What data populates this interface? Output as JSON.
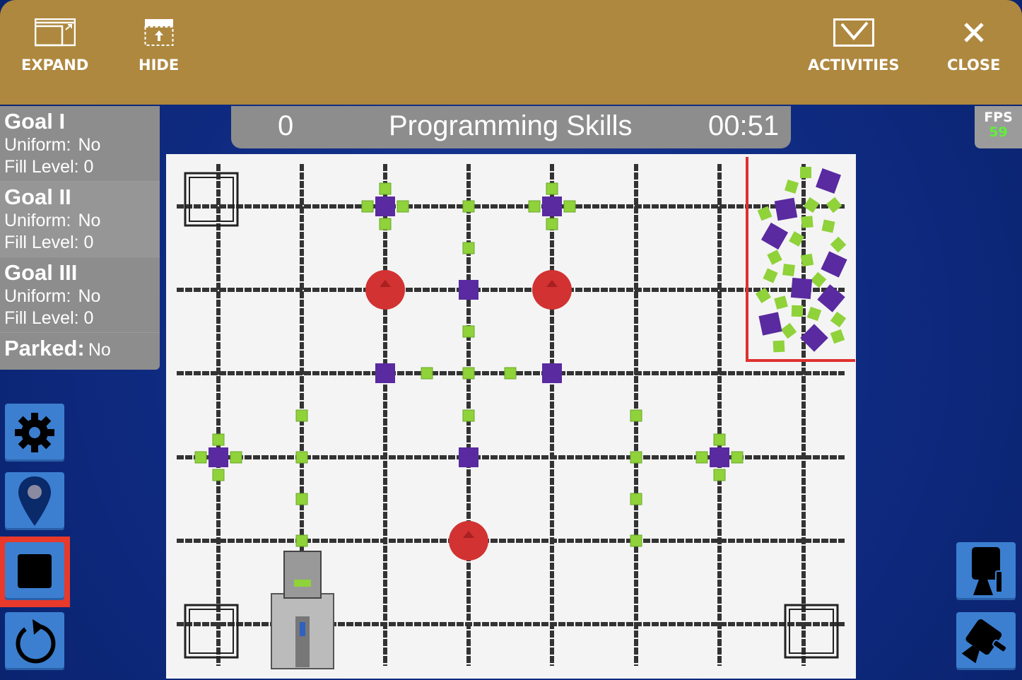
{
  "toolbar": {
    "expand": "EXPAND",
    "hide": "HIDE",
    "activities": "ACTIVITIES",
    "close": "CLOSE"
  },
  "goals": [
    {
      "title": "Goal I",
      "uniform_label": "Uniform:",
      "uniform": "No",
      "fill_label": "Fill Level:",
      "fill": "0"
    },
    {
      "title": "Goal II",
      "uniform_label": "Uniform:",
      "uniform": "No",
      "fill_label": "Fill Level:",
      "fill": "0"
    },
    {
      "title": "Goal III",
      "uniform_label": "Uniform:",
      "uniform": "No",
      "fill_label": "Fill Level:",
      "fill": "0"
    }
  ],
  "parked": {
    "label": "Parked:",
    "value": "No"
  },
  "scoreboard": {
    "score": "0",
    "mode": "Programming Skills",
    "timer": "00:51"
  },
  "fps": {
    "label": "FPS",
    "value": "59"
  },
  "left_buttons": [
    "gear-icon",
    "location-pin-icon",
    "stop-icon",
    "reset-icon"
  ],
  "right_buttons": [
    "camera-top-view-icon",
    "camera-angled-view-icon"
  ],
  "colors": {
    "topbar": "#ae883f",
    "panel": "#8d8d8d",
    "button": "#3c7fd0",
    "stop_highlight": "#e8392b",
    "fps_value": "#5df03a",
    "cube_green": "#8fd23a",
    "goal_purple": "#5a2aa0",
    "ball_red": "#d23232"
  }
}
